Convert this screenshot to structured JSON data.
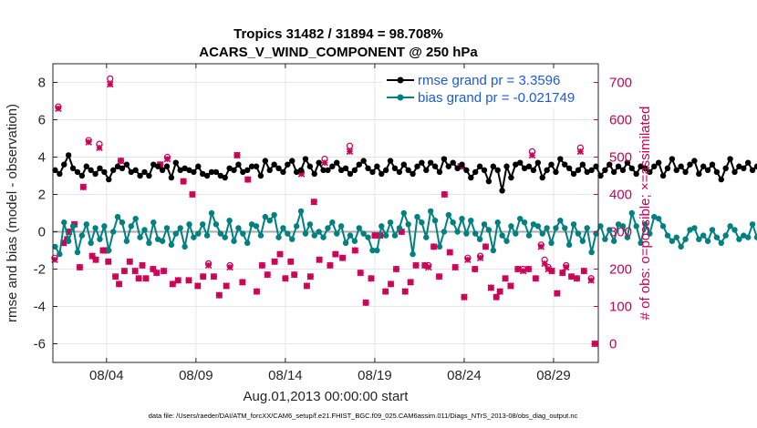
{
  "chart_data": {
    "type": "line",
    "title_line1": "Tropics 31482 / 31894 = 98.708%",
    "title_line2": "ACARS_V_WIND_COMPONENT @ 250 hPa",
    "xlabel": "Aug.01,2013 00:00:00 start",
    "ylabel_left": "rmse and bias (model - observation)",
    "ylabel_right": "# of obs: o=possible; ×=assimilated",
    "footer": "data file: /Users/raeder/DAI/ATM_forcXX/CAM6_setup/f.e21.FHIST_BGC.f09_025.CAM6assim.011/Diags_NTrS_2013-08/obs_diag_output.nc",
    "xlim": [
      1,
      31.5
    ],
    "ylim_left": [
      -7,
      9
    ],
    "ylim_right": [
      -50,
      750
    ],
    "x_ticks": [
      4,
      9,
      14,
      19,
      24,
      29
    ],
    "x_tick_labels": [
      "08/04",
      "08/09",
      "08/14",
      "08/19",
      "08/24",
      "08/29"
    ],
    "y_ticks_left": [
      -6,
      -4,
      -2,
      0,
      2,
      4,
      6,
      8
    ],
    "y_ticks_right": [
      0,
      100,
      200,
      300,
      400,
      500,
      600,
      700
    ],
    "colors": {
      "rmse": "#000000",
      "bias": "#008080",
      "obs": "#cc0055",
      "right_axis": "#cc0055",
      "zero_line": "#aaaaaa"
    },
    "legend": [
      {
        "name": "rmse grand pr = 3.3596",
        "series": "rmse"
      },
      {
        "name": "bias grand pr = -0.021749",
        "series": "bias"
      }
    ],
    "time_step_days": 0.25,
    "start_day": 1.125,
    "rmse": [
      3.3,
      3.1,
      3.6,
      4.1,
      3.4,
      3.2,
      3.0,
      3.5,
      3.3,
      3.1,
      3.4,
      3.2,
      2.8,
      3.3,
      3.5,
      3.4,
      3.6,
      3.2,
      3.3,
      3.0,
      3.2,
      3.0,
      3.6,
      3.5,
      3.3,
      3.5,
      2.9,
      3.7,
      3.3,
      3.4,
      3.3,
      3.2,
      3.5,
      3.1,
      3.0,
      3.2,
      3.2,
      3.0,
      2.9,
      3.4,
      3.3,
      3.6,
      3.2,
      3.3,
      3.5,
      3.5,
      3.0,
      3.8,
      3.3,
      3.6,
      3.4,
      3.2,
      3.6,
      3.8,
      3.2,
      3.3,
      3.9,
      3.5,
      3.1,
      3.7,
      3.3,
      3.3,
      3.5,
      3.7,
      3.3,
      3.4,
      3.1,
      3.3,
      3.6,
      3.8,
      3.4,
      3.2,
      3.5,
      3.1,
      3.3,
      3.8,
      3.4,
      3.2,
      3.6,
      3.3,
      3.1,
      3.5,
      3.7,
      3.3,
      3.7,
      3.5,
      3.2,
      3.9,
      3.5,
      3.7,
      3.4,
      3.6,
      3.3,
      2.9,
      3.2,
      3.5,
      3.3,
      2.7,
      3.5,
      3.3,
      2.2,
      3.5,
      2.9,
      3.6,
      3.7,
      3.4,
      3.5,
      3.3,
      3.7,
      2.9,
      3.3,
      3.6,
      3.2,
      3.9,
      3.6,
      3.4,
      3.1,
      3.3,
      3.6,
      3.2,
      3.3,
      3.5,
      3.0,
      3.3,
      3.6,
      3.2,
      3.5,
      3.3,
      3.7,
      3.4,
      3.1,
      3.5,
      3.4,
      3.2,
      3.5,
      3.7,
      3.0,
      3.4,
      3.9,
      3.3,
      3.5,
      3.2,
      3.6,
      3.8,
      3.1,
      3.5,
      3.3,
      3.6,
      3.2,
      2.8,
      3.4,
      3.9,
      3.2,
      3.5,
      3.4,
      3.7,
      3.3,
      3.5,
      3.9,
      3.4,
      3.7,
      3.6,
      3.2,
      3.7,
      3.1,
      3.6,
      3.8,
      4.0,
      3.6,
      3.8,
      3.4,
      3.7,
      3.2,
      3.5,
      3.3,
      3.2,
      2.9,
      3.6,
      3.8,
      3.5,
      3.9,
      3.7,
      3.6,
      3.2,
      3.4,
      3.3,
      3.0,
      3.4,
      3.7,
      3.6,
      3.9,
      3.8,
      3.6
    ],
    "bias": [
      -0.8,
      -1.2,
      0.5,
      -0.5,
      0.3,
      -1.1,
      -0.2,
      0.4,
      -0.6,
      0.2,
      -0.4,
      0.3,
      -1.0,
      0.0,
      0.8,
      0.5,
      -0.5,
      0.3,
      0.7,
      -0.3,
      0.1,
      -0.6,
      0.5,
      -0.4,
      -0.5,
      0.2,
      -0.7,
      -0.1,
      0.2,
      -0.8,
      0.4,
      -0.3,
      -0.1,
      0.4,
      -0.2,
      1.0,
      0.4,
      -0.1,
      -0.3,
      0.6,
      -0.5,
      0.2,
      -0.1,
      -0.6,
      0.4,
      0.3,
      -0.2,
      0.8,
      0.6,
      0.9,
      -0.3,
      0.2,
      -0.1,
      -0.4,
      0.3,
      1.1,
      -0.1,
      0.4,
      -0.2,
      0.0,
      -0.3,
      0.2,
      0.5,
      -0.1,
      0.3,
      -0.6,
      -0.2,
      -0.5,
      0.2,
      -0.1,
      -0.3,
      -1.0,
      -1.0,
      0.3,
      -0.2,
      0.5,
      -0.2,
      0.2,
      1.0,
      0.4,
      -1.2,
      0.8,
      0.5,
      -0.3,
      1.1,
      0.6,
      -0.8,
      0.0,
      0.9,
      0.5,
      0.0,
      0.7,
      -0.1,
      0.6,
      -0.1,
      -0.4,
      0.4,
      0.1,
      -1.0,
      0.5,
      -0.2,
      -0.5,
      0.3,
      -0.1,
      0.7,
      0.5,
      -0.2,
      0.4,
      0.3,
      -0.1,
      0.2,
      -0.6,
      0.2,
      0.6,
      0.2,
      -0.7,
      0.4,
      -0.1,
      -0.5,
      0.2,
      -1.1,
      -0.1,
      0.3,
      -0.4,
      0.1,
      -0.5,
      0.4,
      0.3,
      -0.3,
      1.0,
      0.3,
      -0.6,
      0.4,
      -0.1,
      0.8,
      0.7,
      0.3,
      -0.2,
      -0.5,
      -0.3,
      -0.8,
      -0.4,
      0.1,
      0.2,
      -0.4,
      -0.2,
      -0.5,
      0.1,
      -0.3,
      -0.6,
      -0.2,
      0.3,
      0.1,
      -0.4,
      -0.2,
      -0.3,
      0.4,
      -0.3,
      0.1,
      -0.2,
      0.6,
      0.2,
      -0.4,
      0.3,
      0.9,
      -0.1,
      0.2,
      1.1,
      0.5,
      -0.4,
      0.3,
      1.0,
      0.2,
      -0.3,
      0.5,
      0.0,
      -0.5,
      0.2,
      0.6,
      -0.2,
      0.4,
      0.3,
      0.0,
      -0.6,
      0.3,
      -0.1,
      0.2,
      -0.5,
      -0.3,
      0.4,
      -0.1,
      0.0
    ],
    "obs_possible": [
      [
        1.1,
        230
      ],
      [
        1.3,
        635
      ],
      [
        1.6,
        270
      ],
      [
        1.8,
        280
      ],
      [
        1.9,
        300
      ],
      [
        2.2,
        320
      ],
      [
        2.5,
        205
      ],
      [
        2.7,
        420
      ],
      [
        3.0,
        545
      ],
      [
        3.2,
        235
      ],
      [
        3.4,
        225
      ],
      [
        3.6,
        535
      ],
      [
        3.8,
        250
      ],
      [
        4.0,
        250
      ],
      [
        4.1,
        220
      ],
      [
        4.2,
        710
      ],
      [
        4.5,
        180
      ],
      [
        4.7,
        160
      ],
      [
        4.8,
        490
      ],
      [
        5.0,
        195
      ],
      [
        5.3,
        220
      ],
      [
        5.6,
        195
      ],
      [
        5.8,
        175
      ],
      [
        6.0,
        210
      ],
      [
        6.2,
        175
      ],
      [
        6.6,
        200
      ],
      [
        6.8,
        190
      ],
      [
        7.0,
        480
      ],
      [
        7.2,
        195
      ],
      [
        7.4,
        500
      ],
      [
        7.7,
        160
      ],
      [
        8.0,
        170
      ],
      [
        8.3,
        435
      ],
      [
        8.6,
        170
      ],
      [
        8.8,
        400
      ],
      [
        9.1,
        155
      ],
      [
        9.4,
        180
      ],
      [
        9.7,
        215
      ],
      [
        10.0,
        180
      ],
      [
        10.3,
        130
      ],
      [
        10.7,
        155
      ],
      [
        10.9,
        210
      ],
      [
        11.3,
        505
      ],
      [
        11.6,
        165
      ],
      [
        11.9,
        440
      ],
      [
        12.4,
        140
      ],
      [
        12.7,
        210
      ],
      [
        13.0,
        185
      ],
      [
        13.4,
        220
      ],
      [
        13.7,
        240
      ],
      [
        14.0,
        175
      ],
      [
        14.3,
        220
      ],
      [
        14.5,
        185
      ],
      [
        14.9,
        460
      ],
      [
        15.2,
        155
      ],
      [
        15.4,
        180
      ],
      [
        15.6,
        380
      ],
      [
        15.9,
        225
      ],
      [
        16.2,
        495
      ],
      [
        16.5,
        210
      ],
      [
        16.8,
        240
      ],
      [
        17.2,
        230
      ],
      [
        17.6,
        530
      ],
      [
        17.9,
        250
      ],
      [
        18.2,
        190
      ],
      [
        18.5,
        110
      ],
      [
        18.8,
        175
      ],
      [
        19.0,
        290
      ],
      [
        19.3,
        290
      ],
      [
        19.6,
        140
      ],
      [
        19.9,
        160
      ],
      [
        20.2,
        200
      ],
      [
        20.5,
        300
      ],
      [
        20.7,
        140
      ],
      [
        21.0,
        165
      ],
      [
        21.3,
        210
      ],
      [
        21.8,
        210
      ],
      [
        22.0,
        210
      ],
      [
        22.3,
        260
      ],
      [
        22.6,
        180
      ],
      [
        22.9,
        400
      ],
      [
        23.2,
        245
      ],
      [
        23.5,
        205
      ],
      [
        23.8,
        475
      ],
      [
        24.0,
        125
      ],
      [
        24.2,
        230
      ],
      [
        24.6,
        200
      ],
      [
        24.9,
        235
      ],
      [
        25.2,
        260
      ],
      [
        25.5,
        150
      ],
      [
        25.8,
        125
      ],
      [
        26.0,
        140
      ],
      [
        26.3,
        175
      ],
      [
        26.6,
        155
      ],
      [
        27.0,
        200
      ],
      [
        27.3,
        200
      ],
      [
        27.6,
        200
      ],
      [
        27.8,
        515
      ],
      [
        28.0,
        175
      ],
      [
        28.3,
        265
      ],
      [
        28.5,
        225
      ],
      [
        28.7,
        205
      ],
      [
        28.9,
        195
      ],
      [
        29.2,
        135
      ],
      [
        29.5,
        190
      ],
      [
        29.7,
        210
      ],
      [
        30.0,
        180
      ],
      [
        30.3,
        175
      ],
      [
        30.5,
        525
      ],
      [
        30.7,
        195
      ],
      [
        31.1,
        175
      ],
      [
        31.3,
        0
      ]
    ],
    "obs_assimilated": [
      [
        1.1,
        225
      ],
      [
        1.3,
        630
      ],
      [
        1.6,
        270
      ],
      [
        1.8,
        280
      ],
      [
        1.9,
        300
      ],
      [
        2.2,
        320
      ],
      [
        2.5,
        205
      ],
      [
        2.7,
        420
      ],
      [
        3.0,
        540
      ],
      [
        3.2,
        235
      ],
      [
        3.4,
        225
      ],
      [
        3.6,
        525
      ],
      [
        3.8,
        250
      ],
      [
        4.0,
        250
      ],
      [
        4.1,
        220
      ],
      [
        4.2,
        695
      ],
      [
        4.5,
        180
      ],
      [
        4.7,
        160
      ],
      [
        4.8,
        490
      ],
      [
        5.0,
        195
      ],
      [
        5.3,
        220
      ],
      [
        5.6,
        195
      ],
      [
        5.8,
        175
      ],
      [
        6.0,
        210
      ],
      [
        6.2,
        175
      ],
      [
        6.6,
        200
      ],
      [
        6.8,
        190
      ],
      [
        7.0,
        480
      ],
      [
        7.2,
        195
      ],
      [
        7.4,
        495
      ],
      [
        7.7,
        160
      ],
      [
        8.0,
        170
      ],
      [
        8.3,
        435
      ],
      [
        8.6,
        170
      ],
      [
        8.8,
        400
      ],
      [
        9.1,
        155
      ],
      [
        9.4,
        180
      ],
      [
        9.7,
        210
      ],
      [
        10.0,
        180
      ],
      [
        10.3,
        130
      ],
      [
        10.7,
        155
      ],
      [
        10.9,
        205
      ],
      [
        11.3,
        505
      ],
      [
        11.6,
        165
      ],
      [
        11.9,
        440
      ],
      [
        12.4,
        140
      ],
      [
        12.7,
        210
      ],
      [
        13.0,
        185
      ],
      [
        13.4,
        220
      ],
      [
        13.7,
        240
      ],
      [
        14.0,
        175
      ],
      [
        14.3,
        220
      ],
      [
        14.5,
        185
      ],
      [
        14.9,
        455
      ],
      [
        15.2,
        155
      ],
      [
        15.4,
        180
      ],
      [
        15.6,
        380
      ],
      [
        15.9,
        225
      ],
      [
        16.2,
        485
      ],
      [
        16.5,
        210
      ],
      [
        16.8,
        240
      ],
      [
        17.2,
        230
      ],
      [
        17.6,
        515
      ],
      [
        17.9,
        250
      ],
      [
        18.2,
        190
      ],
      [
        18.5,
        110
      ],
      [
        18.8,
        175
      ],
      [
        19.0,
        290
      ],
      [
        19.3,
        290
      ],
      [
        19.6,
        140
      ],
      [
        19.9,
        160
      ],
      [
        20.2,
        200
      ],
      [
        20.5,
        300
      ],
      [
        20.7,
        140
      ],
      [
        21.0,
        165
      ],
      [
        21.3,
        210
      ],
      [
        21.8,
        210
      ],
      [
        22.0,
        205
      ],
      [
        22.3,
        260
      ],
      [
        22.6,
        180
      ],
      [
        22.9,
        400
      ],
      [
        23.2,
        245
      ],
      [
        23.5,
        205
      ],
      [
        23.8,
        475
      ],
      [
        24.0,
        125
      ],
      [
        24.2,
        225
      ],
      [
        24.6,
        200
      ],
      [
        24.9,
        230
      ],
      [
        25.2,
        260
      ],
      [
        25.5,
        150
      ],
      [
        25.8,
        125
      ],
      [
        26.0,
        140
      ],
      [
        26.3,
        175
      ],
      [
        26.6,
        155
      ],
      [
        27.0,
        200
      ],
      [
        27.3,
        195
      ],
      [
        27.6,
        200
      ],
      [
        27.8,
        505
      ],
      [
        28.0,
        175
      ],
      [
        28.3,
        260
      ],
      [
        28.5,
        215
      ],
      [
        28.7,
        200
      ],
      [
        28.9,
        195
      ],
      [
        29.2,
        135
      ],
      [
        29.5,
        190
      ],
      [
        29.7,
        205
      ],
      [
        30.0,
        180
      ],
      [
        30.3,
        175
      ],
      [
        30.5,
        515
      ],
      [
        30.7,
        195
      ],
      [
        31.1,
        170
      ],
      [
        31.3,
        0
      ]
    ]
  }
}
